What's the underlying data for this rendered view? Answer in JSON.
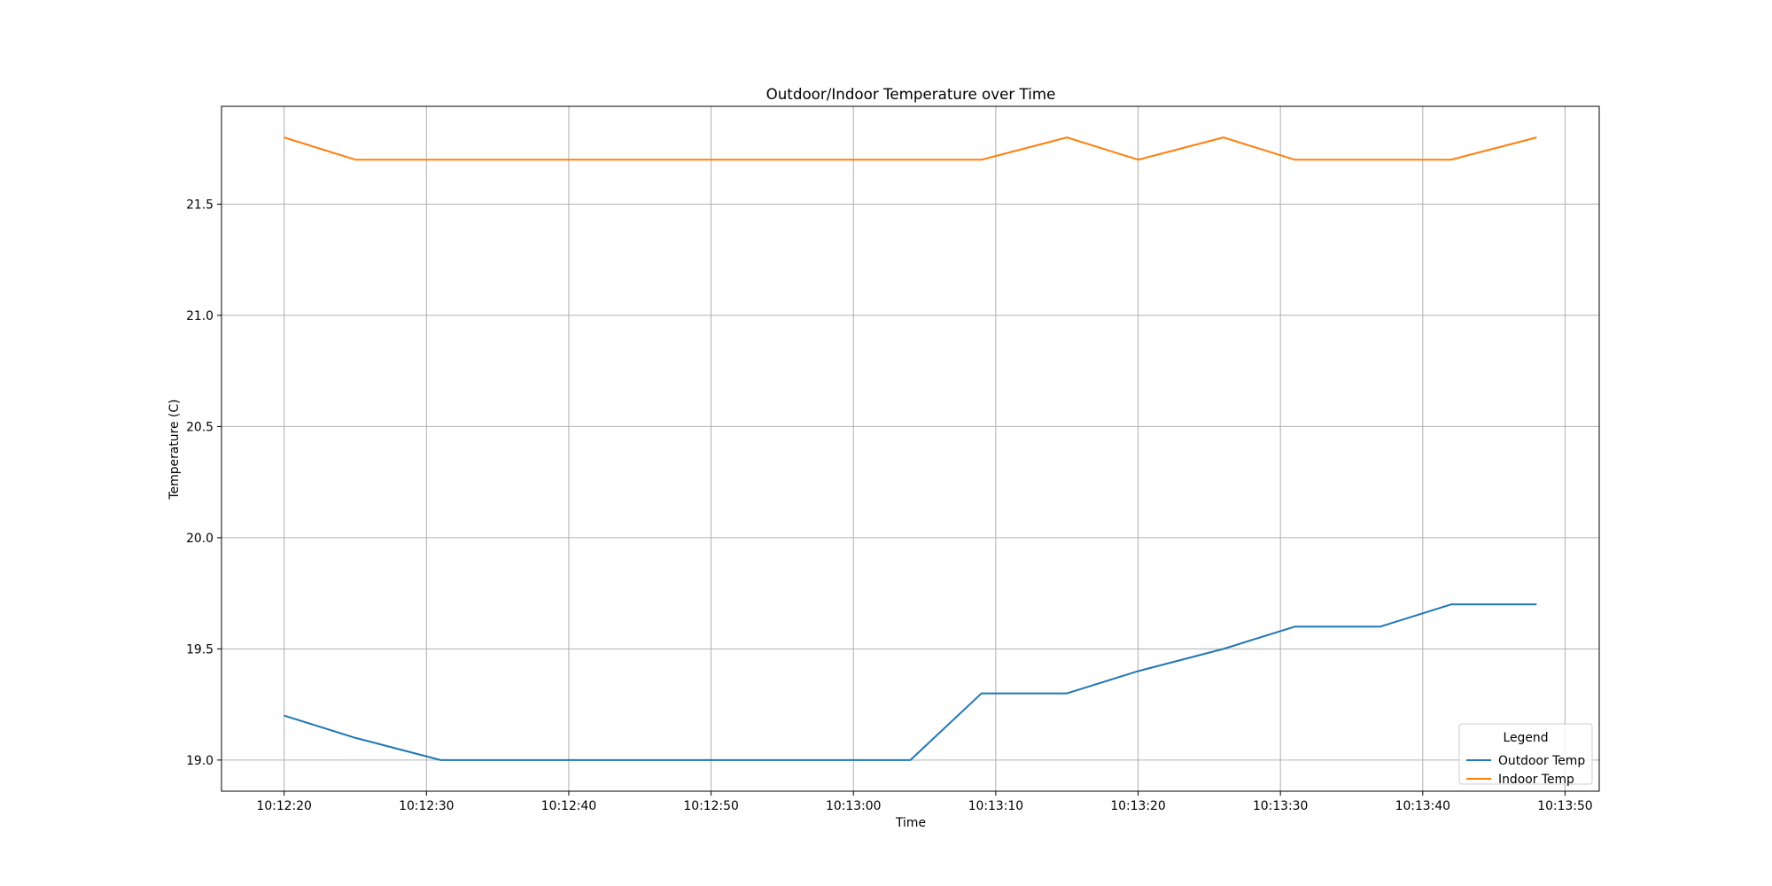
{
  "chart_data": {
    "type": "line",
    "title": "Outdoor/Indoor Temperature over Time",
    "xlabel": "Time",
    "ylabel": "Temperature (C)",
    "x_ticks": [
      "10:12:20",
      "10:12:30",
      "10:12:40",
      "10:12:50",
      "10:13:00",
      "10:13:10",
      "10:13:20",
      "10:13:30",
      "10:13:40",
      "10:13:50"
    ],
    "y_ticks": [
      "19.0",
      "19.5",
      "20.0",
      "20.5",
      "21.0",
      "21.5"
    ],
    "xlim": [
      "10:12:15.6",
      "10:13:52.4"
    ],
    "ylim": [
      18.86,
      21.94
    ],
    "grid": true,
    "legend": {
      "title": "Legend",
      "position": "lower right"
    },
    "series": [
      {
        "name": "Outdoor Temp",
        "color": "#1f77b4",
        "points": [
          [
            "10:12:20",
            19.2
          ],
          [
            "10:12:25",
            19.1
          ],
          [
            "10:12:31",
            19.0
          ],
          [
            "10:12:36",
            19.0
          ],
          [
            "10:12:42",
            19.0
          ],
          [
            "10:12:47",
            19.0
          ],
          [
            "10:12:53",
            19.0
          ],
          [
            "10:12:58",
            19.0
          ],
          [
            "10:13:04",
            19.0
          ],
          [
            "10:13:09",
            19.3
          ],
          [
            "10:13:15",
            19.3
          ],
          [
            "10:13:20",
            19.4
          ],
          [
            "10:13:26",
            19.5
          ],
          [
            "10:13:31",
            19.6
          ],
          [
            "10:13:37",
            19.6
          ],
          [
            "10:13:42",
            19.7
          ],
          [
            "10:13:48",
            19.7
          ]
        ]
      },
      {
        "name": "Indoor Temp",
        "color": "#ff7f0e",
        "points": [
          [
            "10:12:20",
            21.8
          ],
          [
            "10:12:25",
            21.7
          ],
          [
            "10:12:31",
            21.7
          ],
          [
            "10:12:36",
            21.7
          ],
          [
            "10:12:42",
            21.7
          ],
          [
            "10:12:47",
            21.7
          ],
          [
            "10:12:53",
            21.7
          ],
          [
            "10:12:58",
            21.7
          ],
          [
            "10:13:04",
            21.7
          ],
          [
            "10:13:09",
            21.7
          ],
          [
            "10:13:15",
            21.8
          ],
          [
            "10:13:20",
            21.7
          ],
          [
            "10:13:26",
            21.8
          ],
          [
            "10:13:31",
            21.7
          ],
          [
            "10:13:37",
            21.7
          ],
          [
            "10:13:42",
            21.7
          ],
          [
            "10:13:48",
            21.8
          ]
        ]
      }
    ]
  }
}
